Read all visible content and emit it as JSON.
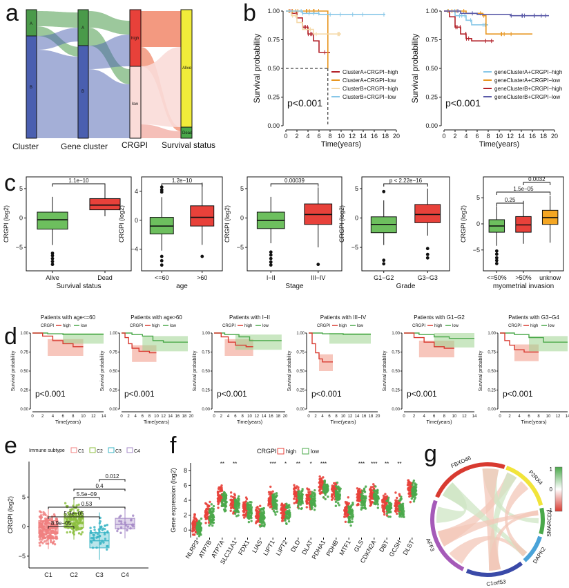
{
  "panel_labels": [
    "a",
    "b",
    "c",
    "d",
    "e",
    "f",
    "g"
  ],
  "panel_a": {
    "axis_labels": [
      "Cluster",
      "Gene cluster",
      "CRGPI",
      "Survival status"
    ],
    "node_labels": {
      "cluster": [
        "A",
        "B"
      ],
      "gene_cluster": [
        "A",
        "B"
      ],
      "crgpi": [
        "high",
        "low"
      ],
      "status": [
        "Alive",
        "Dead"
      ]
    },
    "colors": {
      "A": "#4a9a4a",
      "B": "#4a5fb0",
      "high": "#e8413a",
      "low": "#fadcd8",
      "alive": "#f1ec3a",
      "dead": "#4aa84a"
    }
  },
  "panel_b": {
    "left": {
      "ylabel": "Survival probability",
      "xlabel": "Time(years)",
      "pvalue": "p<0.001",
      "legend": [
        "ClusterA+CRGPI−high",
        "ClusterA+CRGPI−low",
        "ClusterB+CRGPI−high",
        "ClusterB+CRGPI−low"
      ],
      "colors": [
        "#b22028",
        "#e8951e",
        "#f5d9a8",
        "#87c7e8"
      ]
    },
    "right": {
      "ylabel": "Survival probability",
      "xlabel": "Time(years)",
      "pvalue": "p<0.001",
      "legend": [
        "geneClusterA+CRGPI−high",
        "geneClusterA+CRGPI−low",
        "geneClusterB+CRGPI−high",
        "geneClusterB+CRGPI−low"
      ],
      "colors": [
        "#87c7e8",
        "#e8951e",
        "#b22028",
        "#5a5aa8"
      ]
    },
    "xticks": [
      "0",
      "2",
      "4",
      "6",
      "8",
      "10",
      "12",
      "14",
      "16",
      "18",
      "20"
    ],
    "yticks": [
      "0.00",
      "0.25",
      "0.50",
      "0.75",
      "1.00"
    ]
  },
  "panel_c": {
    "ylabel": "CRGPI (log2)",
    "plots": [
      {
        "xlabel": "Survival status",
        "groups": [
          "Alive",
          "Dead"
        ],
        "colors": [
          "#6dbf5e",
          "#e8413a"
        ],
        "yticks": [
          "−5",
          "0",
          "5"
        ],
        "ylim": [
          -9,
          7
        ],
        "tickvals": [
          -5,
          0,
          5
        ],
        "boxes": [
          [
            -4.6,
            -1.9,
            -0.3,
            1.0,
            3.6
          ],
          [
            0.3,
            1.4,
            2.2,
            3.3,
            5.8
          ]
        ],
        "outliers": [
          [
            -6.0,
            -6.4,
            -6.9,
            -7.4,
            -7.9
          ],
          []
        ],
        "pvals": [
          "1.1e−10"
        ]
      },
      {
        "xlabel": "age",
        "groups": [
          "<=60",
          ">60"
        ],
        "colors": [
          "#6dbf5e",
          "#e8413a"
        ],
        "yticks": [
          "−4",
          "0",
          "4"
        ],
        "ylim": [
          -7,
          6
        ],
        "tickvals": [
          -4,
          0,
          4
        ],
        "boxes": [
          [
            -4.2,
            -1.9,
            -0.8,
            0.4,
            3.2
          ],
          [
            -3.4,
            -0.8,
            0.4,
            2.0,
            5.2
          ]
        ],
        "outliers": [
          [
            3.9,
            4.2,
            4.6,
            -5.0,
            -5.6,
            -6.2
          ],
          [
            -5.0
          ]
        ],
        "pvals": [
          "1.2e−10"
        ]
      },
      {
        "xlabel": "Stage",
        "groups": [
          "I−II",
          "III−IV"
        ],
        "colors": [
          "#6dbf5e",
          "#e8413a"
        ],
        "yticks": [
          "−5",
          "0",
          "5"
        ],
        "ylim": [
          -9,
          7
        ],
        "tickvals": [
          -5,
          0,
          5
        ],
        "boxes": [
          [
            -4.3,
            -1.8,
            -0.4,
            1.0,
            3.6
          ],
          [
            -5.0,
            -1.1,
            0.6,
            2.4,
            5.2
          ]
        ],
        "outliers": [
          [
            -5.8,
            -6.3,
            -6.9,
            -7.5,
            -8.0
          ],
          [
            -7.9
          ]
        ],
        "pvals": [
          "0.00039"
        ]
      },
      {
        "xlabel": "Grade",
        "groups": [
          "G1−G2",
          "G3−G3"
        ],
        "colors": [
          "#6dbf5e",
          "#e8413a"
        ],
        "yticks": [
          "−5",
          "0",
          "5"
        ],
        "ylim": [
          -9,
          7
        ],
        "tickvals": [
          -5,
          0,
          5
        ],
        "boxes": [
          [
            -4.6,
            -2.5,
            -1.1,
            0.2,
            3.0
          ],
          [
            -3.0,
            -0.8,
            0.6,
            2.3,
            5.0
          ]
        ],
        "outliers": [
          [
            4.5,
            -7.2,
            -7.8
          ],
          [
            -5.2,
            -6.2,
            -6.8
          ]
        ],
        "pvals": [
          "p < 2.22e−16"
        ]
      },
      {
        "xlabel": "myometrial invasion",
        "groups": [
          "<=50%",
          ">50%",
          "unknow"
        ],
        "colors": [
          "#6dbf5e",
          "#e8413a",
          "#f4a623"
        ],
        "yticks": [
          "−5",
          "0",
          "5"
        ],
        "ylim": [
          -9,
          9
        ],
        "tickvals": [
          -5,
          0,
          5
        ],
        "boxes": [
          [
            -4.2,
            -1.6,
            -0.4,
            0.8,
            3.4
          ],
          [
            -3.8,
            -1.6,
            -0.2,
            1.4,
            4.4
          ],
          [
            -3.6,
            -0.1,
            1.2,
            2.6,
            5.4
          ]
        ],
        "outliers": [
          [
            -5.2,
            -5.8,
            -6.5,
            -7.0,
            -7.6
          ],
          [],
          []
        ],
        "pvals": [
          "0.25",
          "1.5e−05",
          "0.0032"
        ]
      }
    ]
  },
  "panel_d": {
    "ylabel": "Survival probability",
    "xlabel": "Time(years)",
    "pvalue": "p<0.001",
    "legend_title": "CRGPI",
    "legend": [
      "high",
      "low"
    ],
    "colors": [
      "#d83a30",
      "#4aa84a"
    ],
    "titles": [
      "Patients with age<=60",
      "Patients with age>60",
      "Patients with I−II",
      "Patients with III−IV",
      "Patients with G1−G2",
      "Patients with G3−G4"
    ],
    "yticks": [
      "0.00",
      "0.25",
      "0.50",
      "0.75",
      "1.00"
    ],
    "xticks": [
      [
        "0",
        "2",
        "4",
        "6",
        "8",
        "10",
        "12",
        "14"
      ],
      [
        "0",
        "2",
        "4",
        "6",
        "8",
        "10",
        "12",
        "14",
        "16",
        "18",
        "20"
      ],
      [
        "0",
        "2",
        "4",
        "6",
        "8",
        "10",
        "12",
        "14",
        "16",
        "18",
        "20"
      ],
      [
        "0",
        "2",
        "4",
        "6",
        "8",
        "10",
        "12",
        "14",
        "16",
        "18",
        "20"
      ],
      [
        "0",
        "2",
        "4",
        "6",
        "8",
        "10",
        "12",
        "14"
      ],
      [
        "0",
        "2",
        "4",
        "6",
        "8",
        "10",
        "12",
        "14"
      ]
    ]
  },
  "panel_e": {
    "legend_title": "Immune subtype",
    "legend": [
      "C1",
      "C2",
      "C3",
      "C4"
    ],
    "colors": [
      "#f08080",
      "#8cbf3f",
      "#3ab5c6",
      "#a58ac7"
    ],
    "ylabel": "CRGPI (log2)",
    "yticks": [
      "−5",
      "0",
      "5"
    ],
    "categories": [
      "C1",
      "C2",
      "C3",
      "C4"
    ],
    "boxes": [
      [
        -3.8,
        -1.2,
        -0.1,
        1.0,
        3.2
      ],
      [
        -2.2,
        -0.2,
        0.6,
        1.8,
        4.8
      ],
      [
        -5.6,
        -3.6,
        -2.4,
        -1.0,
        2.4
      ],
      [
        -2.0,
        -0.4,
        0.4,
        1.4,
        3.0
      ]
    ],
    "pvals": [
      "8.9e−05",
      "5.3e−05",
      "0.53",
      "5.5e−09",
      "0.4",
      "0.012"
    ]
  },
  "panel_f": {
    "legend_title": "CRGPI",
    "legend": [
      "high",
      "low"
    ],
    "colors": [
      "#e8413a",
      "#4aa84a"
    ],
    "ylabel": "Gene expression (log2)",
    "yticks": [
      "0",
      "2",
      "4",
      "6",
      "8"
    ],
    "genes": [
      "NLRP3",
      "ATP7B",
      "ATP7A",
      "SLC31A1",
      "FDX1",
      "LIAS",
      "LIPT1",
      "LIPT2",
      "DLD",
      "DLAT",
      "PDHA1",
      "PDHB",
      "MTF1",
      "GLS",
      "CDKN2A",
      "DBT",
      "GCSH",
      "DLST"
    ],
    "stars": [
      "",
      "",
      "**",
      "**",
      "",
      "",
      "***",
      "*",
      "**",
      "*",
      "***",
      "",
      "",
      "***",
      "***",
      "**",
      "**",
      ""
    ],
    "centers": [
      0.4,
      2.0,
      4.2,
      3.4,
      2.6,
      1.8,
      3.8,
      2.2,
      4.4,
      4.0,
      5.6,
      5.0,
      2.4,
      4.2,
      4.4,
      3.2,
      3.0,
      5.2
    ]
  },
  "panel_g": {
    "labels": [
      "P2RX4",
      "SMARCD3",
      "DAPK2",
      "C1orf53",
      "AFF3",
      "FBXO46"
    ],
    "colors": [
      "#f1e43a",
      "#4aa84a",
      "#4aa3d8",
      "#3a4aa8",
      "#a55ab8",
      "#d83a30"
    ],
    "legend_ticks": [
      "1",
      "0",
      "−1"
    ]
  }
}
